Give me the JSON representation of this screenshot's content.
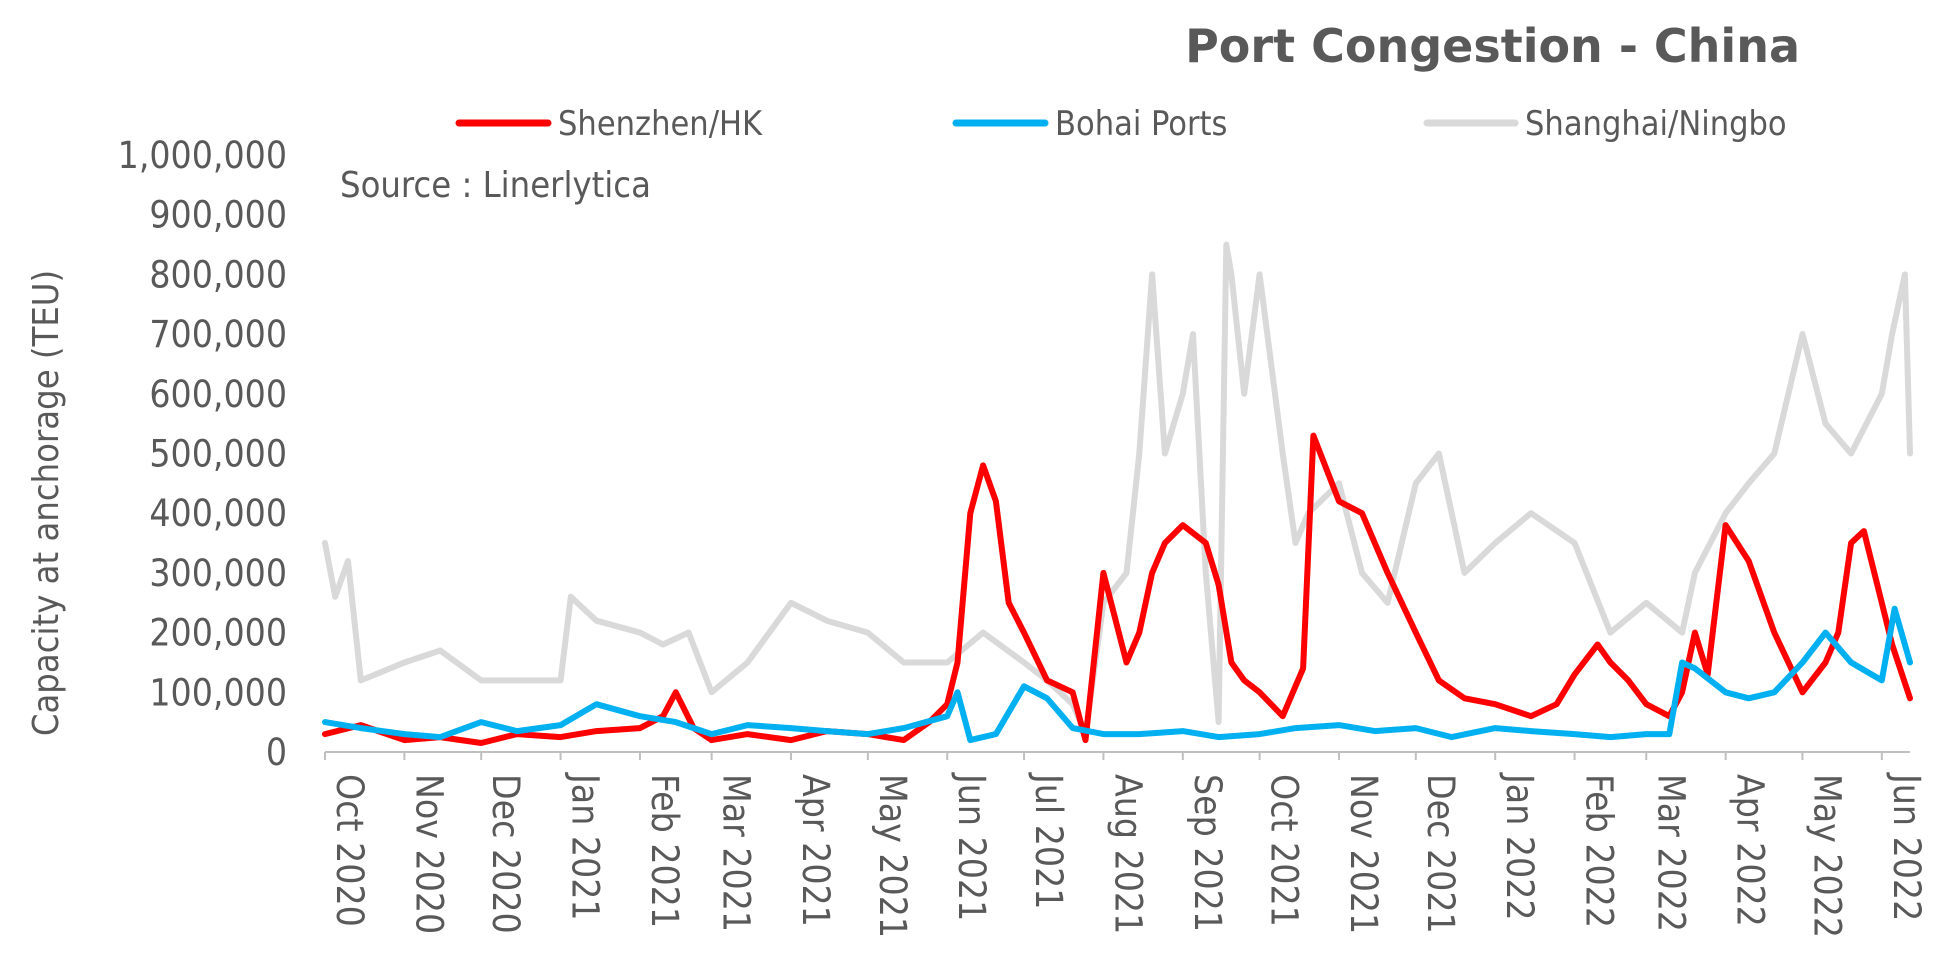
{
  "chart_data": {
    "type": "line",
    "title": "Port Congestion - China",
    "source_note": "Source : Linerlytica",
    "xlabel": "",
    "ylabel": "Capacity at anchorage (TEU)",
    "ylim": [
      0,
      1000000
    ],
    "xlim": [
      "2020-10-01",
      "2022-06-12"
    ],
    "y_ticks": [
      0,
      100000,
      200000,
      300000,
      400000,
      500000,
      600000,
      700000,
      800000,
      900000,
      1000000
    ],
    "y_tick_labels": [
      "0",
      "100,000",
      "200,000",
      "300,000",
      "400,000",
      "500,000",
      "600,000",
      "700,000",
      "800,000",
      "900,000",
      "1,000,000"
    ],
    "x_ticks": [
      "2020-10-01",
      "2020-11-01",
      "2020-12-01",
      "2021-01-01",
      "2021-02-01",
      "2021-03-01",
      "2021-04-01",
      "2021-05-01",
      "2021-06-01",
      "2021-07-01",
      "2021-08-01",
      "2021-09-01",
      "2021-10-01",
      "2021-11-01",
      "2021-12-01",
      "2022-01-01",
      "2022-02-01",
      "2022-03-01",
      "2022-04-01",
      "2022-05-01",
      "2022-06-01"
    ],
    "x_tick_labels": [
      "Oct 2020",
      "Nov 2020",
      "Dec 2020",
      "Jan 2021",
      "Feb 2021",
      "Mar 2021",
      "Apr 2021",
      "May 2021",
      "Jun 2021",
      "Jul 2021",
      "Aug 2021",
      "Sep 2021",
      "Oct 2021",
      "Nov 2021",
      "Dec 2021",
      "Jan 2022",
      "Feb 2022",
      "Mar 2022",
      "Apr 2022",
      "May 2022",
      "Jun 2022"
    ],
    "grid": false,
    "legend_position": "top",
    "series": [
      {
        "name": "Shenzhen/HK",
        "color": "#ff0000",
        "x": [
          "2020-10-01",
          "2020-10-15",
          "2020-11-01",
          "2020-11-15",
          "2020-12-01",
          "2020-12-15",
          "2021-01-01",
          "2021-01-15",
          "2021-02-01",
          "2021-02-10",
          "2021-02-15",
          "2021-02-22",
          "2021-03-01",
          "2021-03-15",
          "2021-04-01",
          "2021-04-15",
          "2021-05-01",
          "2021-05-15",
          "2021-05-25",
          "2021-06-01",
          "2021-06-05",
          "2021-06-10",
          "2021-06-15",
          "2021-06-20",
          "2021-06-25",
          "2021-07-01",
          "2021-07-10",
          "2021-07-20",
          "2021-07-25",
          "2021-08-01",
          "2021-08-10",
          "2021-08-15",
          "2021-08-20",
          "2021-08-25",
          "2021-09-01",
          "2021-09-10",
          "2021-09-15",
          "2021-09-20",
          "2021-09-25",
          "2021-10-01",
          "2021-10-10",
          "2021-10-18",
          "2021-10-22",
          "2021-11-01",
          "2021-11-10",
          "2021-11-20",
          "2021-12-01",
          "2021-12-10",
          "2021-12-20",
          "2022-01-01",
          "2022-01-15",
          "2022-01-25",
          "2022-02-01",
          "2022-02-10",
          "2022-02-15",
          "2022-02-22",
          "2022-03-01",
          "2022-03-10",
          "2022-03-15",
          "2022-03-20",
          "2022-03-25",
          "2022-04-01",
          "2022-04-10",
          "2022-04-20",
          "2022-05-01",
          "2022-05-10",
          "2022-05-15",
          "2022-05-20",
          "2022-05-25",
          "2022-06-01",
          "2022-06-05",
          "2022-06-12"
        ],
        "values": [
          30000,
          45000,
          20000,
          25000,
          15000,
          30000,
          25000,
          35000,
          40000,
          60000,
          100000,
          40000,
          20000,
          30000,
          20000,
          35000,
          30000,
          20000,
          50000,
          80000,
          150000,
          400000,
          480000,
          420000,
          250000,
          200000,
          120000,
          100000,
          20000,
          300000,
          150000,
          200000,
          300000,
          350000,
          380000,
          350000,
          280000,
          150000,
          120000,
          100000,
          60000,
          140000,
          530000,
          420000,
          400000,
          300000,
          200000,
          120000,
          90000,
          80000,
          60000,
          80000,
          130000,
          180000,
          150000,
          120000,
          80000,
          60000,
          100000,
          200000,
          130000,
          380000,
          320000,
          200000,
          100000,
          150000,
          200000,
          350000,
          370000,
          250000,
          180000,
          90000
        ]
      },
      {
        "name": "Bohai Ports",
        "color": "#00b0f0",
        "x": [
          "2020-10-01",
          "2020-10-15",
          "2020-11-01",
          "2020-11-15",
          "2020-12-01",
          "2020-12-15",
          "2021-01-01",
          "2021-01-15",
          "2021-02-01",
          "2021-02-15",
          "2021-03-01",
          "2021-03-15",
          "2021-04-01",
          "2021-04-15",
          "2021-05-01",
          "2021-05-15",
          "2021-06-01",
          "2021-06-05",
          "2021-06-10",
          "2021-06-20",
          "2021-07-01",
          "2021-07-10",
          "2021-07-20",
          "2021-08-01",
          "2021-08-15",
          "2021-09-01",
          "2021-09-15",
          "2021-10-01",
          "2021-10-15",
          "2021-11-01",
          "2021-11-15",
          "2021-12-01",
          "2021-12-15",
          "2022-01-01",
          "2022-01-15",
          "2022-02-01",
          "2022-02-15",
          "2022-03-01",
          "2022-03-10",
          "2022-03-15",
          "2022-03-20",
          "2022-04-01",
          "2022-04-10",
          "2022-04-20",
          "2022-05-01",
          "2022-05-10",
          "2022-05-20",
          "2022-06-01",
          "2022-06-06",
          "2022-06-12"
        ],
        "values": [
          50000,
          40000,
          30000,
          25000,
          50000,
          35000,
          45000,
          80000,
          60000,
          50000,
          30000,
          45000,
          40000,
          35000,
          30000,
          40000,
          60000,
          100000,
          20000,
          30000,
          110000,
          90000,
          40000,
          30000,
          30000,
          35000,
          25000,
          30000,
          40000,
          45000,
          35000,
          40000,
          25000,
          40000,
          35000,
          30000,
          25000,
          30000,
          30000,
          150000,
          140000,
          100000,
          90000,
          100000,
          150000,
          200000,
          150000,
          120000,
          240000,
          150000
        ]
      },
      {
        "name": "Shanghai/Ningbo",
        "color": "#d9d9d9",
        "x": [
          "2020-10-01",
          "2020-10-05",
          "2020-10-10",
          "2020-10-15",
          "2020-11-01",
          "2020-11-15",
          "2020-12-01",
          "2020-12-15",
          "2021-01-01",
          "2021-01-05",
          "2021-01-15",
          "2021-02-01",
          "2021-02-10",
          "2021-02-20",
          "2021-03-01",
          "2021-03-15",
          "2021-04-01",
          "2021-04-15",
          "2021-05-01",
          "2021-05-15",
          "2021-06-01",
          "2021-06-15",
          "2021-07-01",
          "2021-07-10",
          "2021-07-20",
          "2021-07-25",
          "2021-08-01",
          "2021-08-10",
          "2021-08-15",
          "2021-08-20",
          "2021-08-25",
          "2021-09-01",
          "2021-09-05",
          "2021-09-10",
          "2021-09-15",
          "2021-09-18",
          "2021-09-20",
          "2021-09-25",
          "2021-10-01",
          "2021-10-10",
          "2021-10-15",
          "2021-10-20",
          "2021-11-01",
          "2021-11-10",
          "2021-11-20",
          "2021-12-01",
          "2021-12-10",
          "2021-12-20",
          "2022-01-01",
          "2022-01-15",
          "2022-02-01",
          "2022-02-15",
          "2022-03-01",
          "2022-03-15",
          "2022-03-20",
          "2022-04-01",
          "2022-04-10",
          "2022-04-20",
          "2022-05-01",
          "2022-05-10",
          "2022-05-20",
          "2022-06-01",
          "2022-06-05",
          "2022-06-10",
          "2022-06-12"
        ],
        "values": [
          350000,
          260000,
          320000,
          120000,
          150000,
          170000,
          120000,
          120000,
          120000,
          260000,
          220000,
          200000,
          180000,
          200000,
          100000,
          150000,
          250000,
          220000,
          200000,
          150000,
          150000,
          200000,
          150000,
          120000,
          80000,
          30000,
          250000,
          300000,
          500000,
          800000,
          500000,
          600000,
          700000,
          300000,
          50000,
          850000,
          800000,
          600000,
          800000,
          500000,
          350000,
          400000,
          450000,
          300000,
          250000,
          450000,
          500000,
          300000,
          350000,
          400000,
          350000,
          200000,
          250000,
          200000,
          300000,
          400000,
          450000,
          500000,
          700000,
          550000,
          500000,
          600000,
          700000,
          800000,
          500000
        ]
      }
    ]
  }
}
